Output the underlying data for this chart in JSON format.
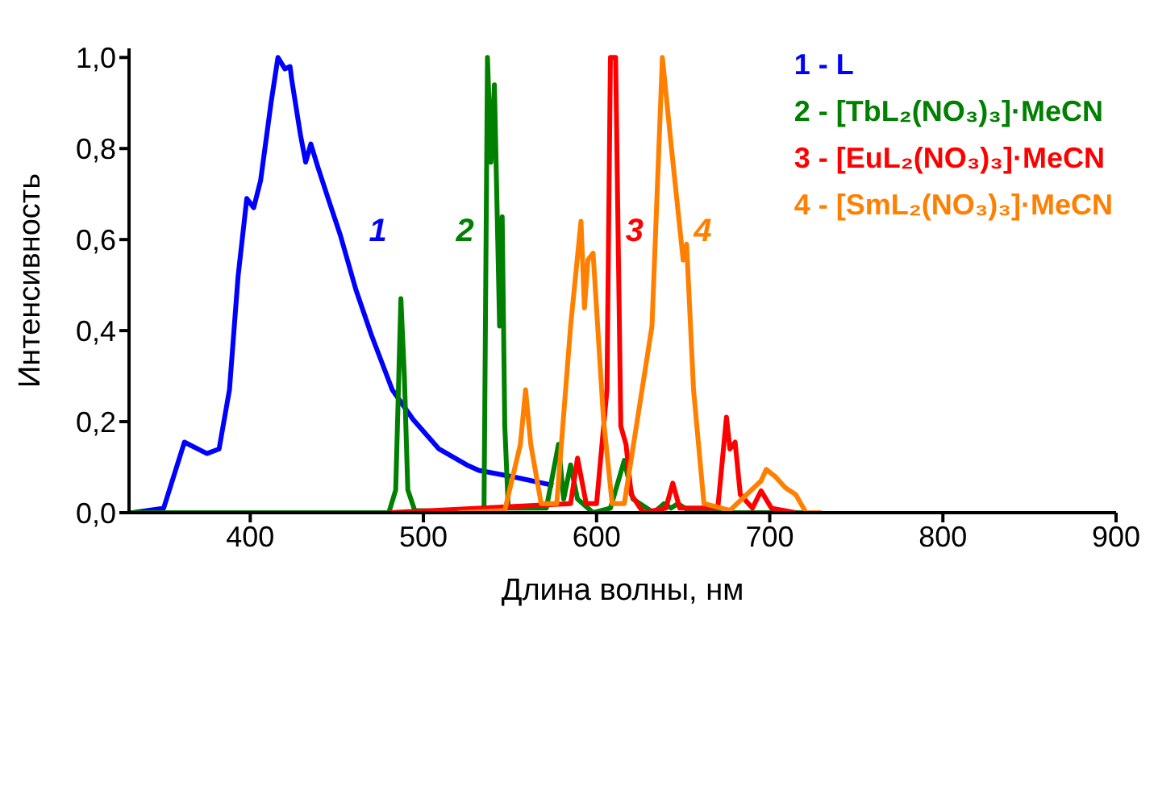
{
  "chart_data": {
    "type": "line",
    "xlabel": "Длина волны, нм",
    "ylabel": "Интенсивность",
    "xlim": [
      330,
      900
    ],
    "xticks": [
      400,
      500,
      600,
      700,
      800,
      900
    ],
    "ylim": [
      0,
      1.02
    ],
    "yticks": [
      {
        "value": 0,
        "label": "0,0"
      },
      {
        "value": 0.2,
        "label": "0,2"
      },
      {
        "value": 0.4,
        "label": "0,4"
      },
      {
        "value": 0.6,
        "label": "0,6"
      },
      {
        "value": 0.8,
        "label": "0,8"
      },
      {
        "value": 1.0,
        "label": "1,0"
      }
    ],
    "grid": false,
    "legend": "top right",
    "marker": "none",
    "line_style": "solid",
    "series": [
      {
        "name": "1 - L",
        "color": "#0000ff",
        "x": [
          332,
          350,
          362,
          375,
          382,
          388,
          393,
          398,
          402,
          406,
          412,
          416,
          420,
          423,
          424,
          429,
          432,
          435,
          439,
          445,
          452,
          461,
          470,
          482,
          494,
          509,
          525,
          532,
          553,
          575
        ],
        "values": [
          0,
          0.01,
          0.155,
          0.13,
          0.14,
          0.27,
          0.52,
          0.69,
          0.67,
          0.73,
          0.9,
          1.0,
          0.975,
          0.98,
          0.95,
          0.83,
          0.77,
          0.81,
          0.76,
          0.69,
          0.61,
          0.49,
          0.39,
          0.27,
          0.205,
          0.14,
          0.105,
          0.093,
          0.078,
          0.06
        ]
      },
      {
        "name": "2 - [TbL₂(NO₃)₃]·MeCN",
        "color": "#008000",
        "x": [
          330,
          480,
          484,
          487,
          489,
          491,
          495,
          533,
          535,
          537,
          539,
          541,
          544,
          545.5,
          547,
          549,
          571,
          578,
          581,
          585,
          589,
          598,
          608,
          616,
          621,
          633,
          639,
          643,
          647,
          655,
          730
        ],
        "values": [
          0,
          0,
          0.05,
          0.47,
          0.3,
          0.05,
          0.005,
          0,
          0.01,
          1.0,
          0.77,
          0.94,
          0.41,
          0.65,
          0.19,
          0.01,
          0.01,
          0.15,
          0.03,
          0.105,
          0.03,
          0,
          0.01,
          0.115,
          0.03,
          0,
          0.02,
          0.01,
          0.02,
          0,
          0
        ]
      },
      {
        "name": "3 - [EuL₂(NO₃)₃]·MeCN",
        "color": "#ff0000",
        "x": [
          480,
          585,
          589,
          594,
          600,
          606,
          608,
          611,
          614,
          617,
          620,
          627,
          640,
          644,
          648,
          670,
          675,
          677,
          680,
          683,
          690,
          695,
          701,
          715
        ],
        "values": [
          0,
          0.02,
          0.12,
          0.02,
          0.02,
          0.27,
          1.0,
          1.0,
          0.19,
          0.15,
          0.04,
          0,
          0.01,
          0.065,
          0.01,
          0.01,
          0.21,
          0.14,
          0.155,
          0.04,
          0.01,
          0.048,
          0.01,
          0
        ]
      },
      {
        "name": "4 - [SmL₂(NO₃)₃]·MeCN",
        "color": "#ff8000",
        "x": [
          520,
          547,
          556,
          559,
          562,
          568,
          577,
          585,
          591,
          593,
          595,
          598,
          604,
          609,
          616,
          632,
          638,
          643,
          650,
          652,
          656,
          662,
          677,
          695,
          698,
          703,
          709,
          715,
          721,
          730
        ],
        "values": [
          0,
          0.005,
          0.15,
          0.27,
          0.15,
          0.02,
          0.02,
          0.41,
          0.64,
          0.45,
          0.555,
          0.57,
          0.205,
          0.02,
          0.02,
          0.41,
          1.0,
          0.81,
          0.555,
          0.59,
          0.27,
          0.02,
          0.005,
          0.07,
          0.095,
          0.08,
          0.055,
          0.04,
          0,
          0
        ]
      }
    ],
    "annotations": [
      "1",
      "2",
      "3",
      "4"
    ]
  }
}
